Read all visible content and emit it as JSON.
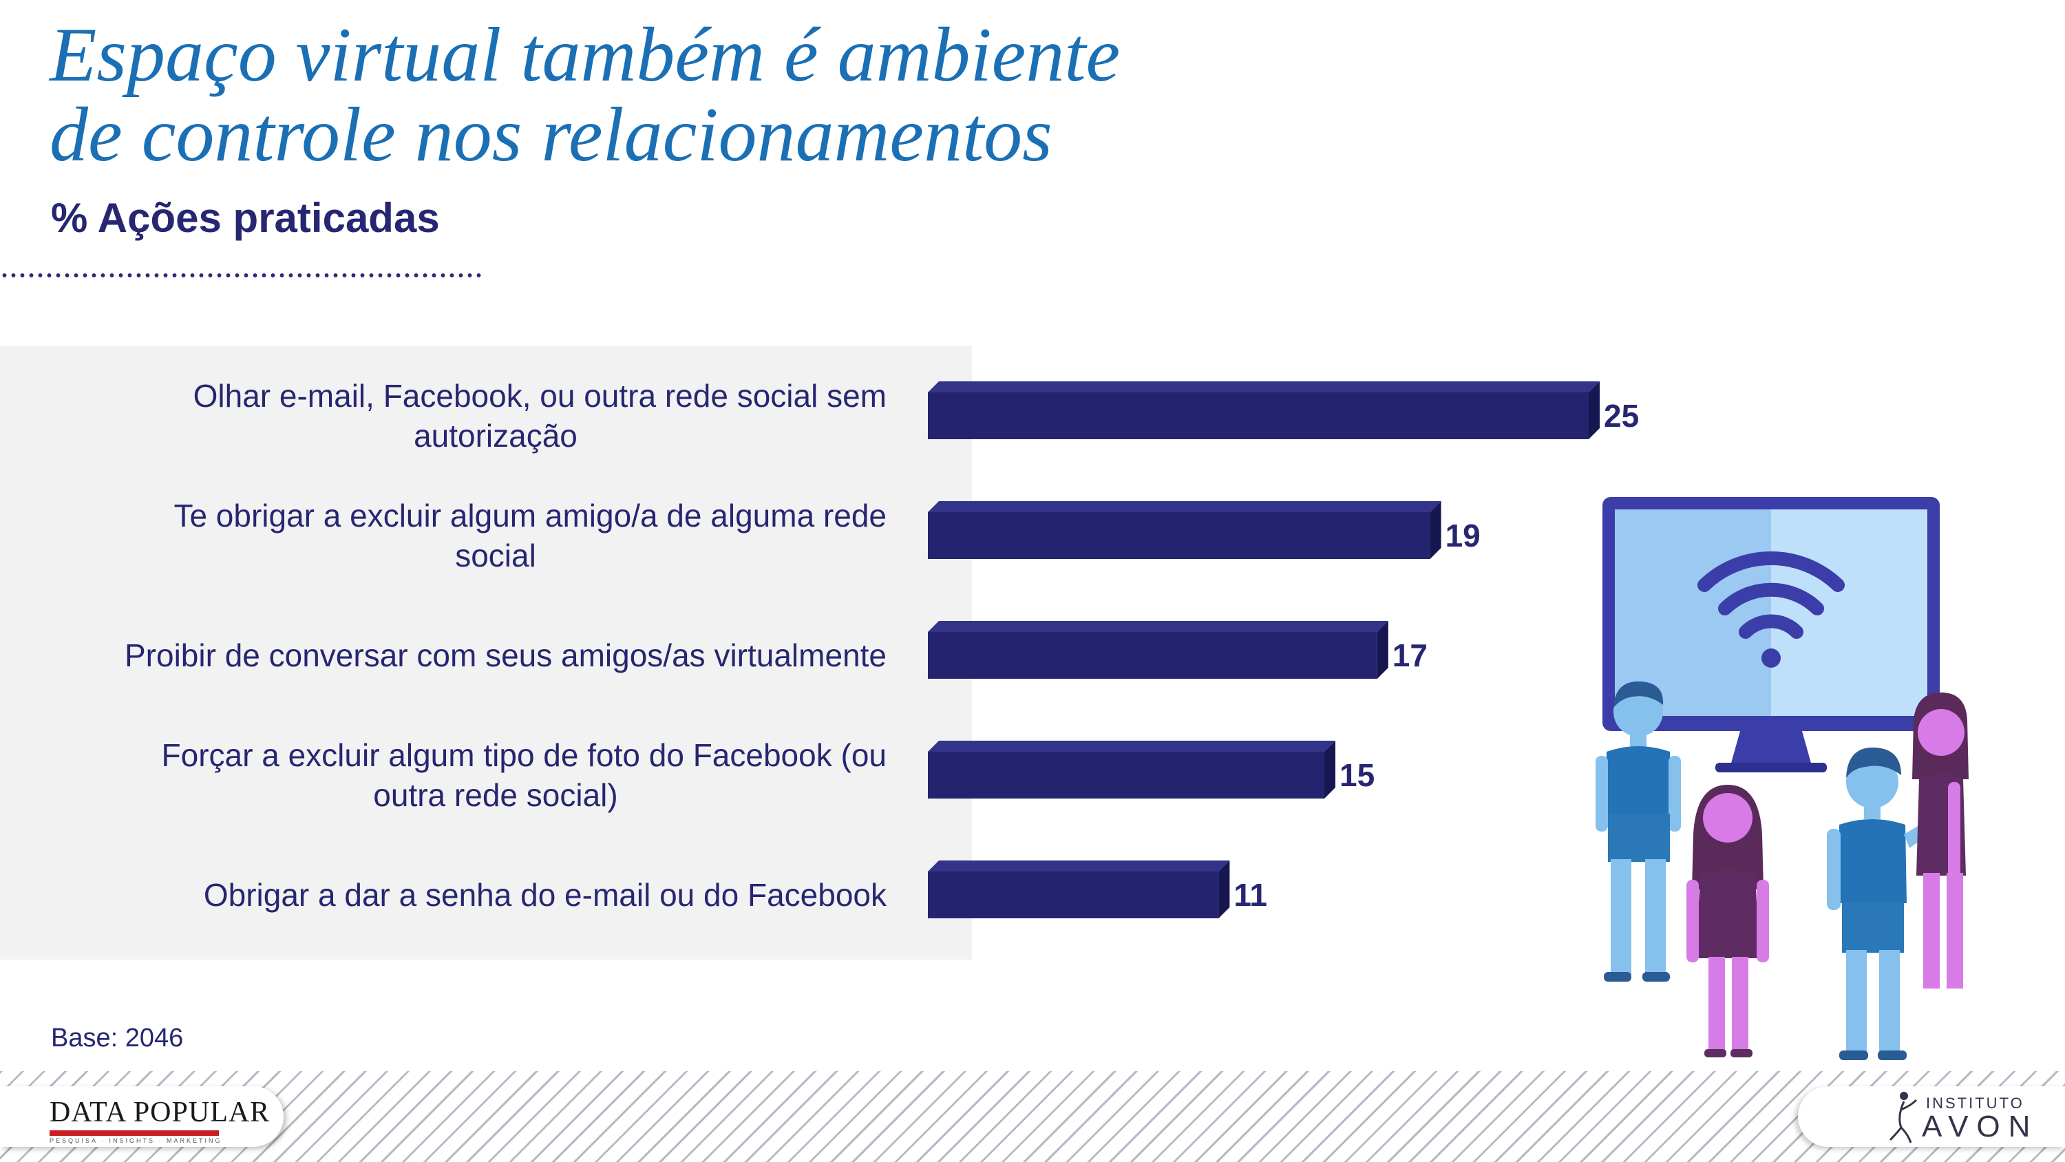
{
  "title": {
    "line1": "Espaço virtual também é ambiente",
    "line2": "de controle  nos relacionamentos"
  },
  "subtitle": "% Ações praticadas",
  "base_note": "Base: 2046",
  "footer": {
    "left_logo": "DATA POPULAR",
    "left_logo_tag": "PESQUISA · INSIGHTS · MARKETING",
    "right_logo_small": "INSTITUTO",
    "right_logo_big": "AVON"
  },
  "colors": {
    "bar_front": "#24246e",
    "bar_top": "#33338a",
    "bar_side": "#161650",
    "text": "#262672",
    "title": "#1a6fb5"
  },
  "chart_data": {
    "type": "bar",
    "orientation": "horizontal",
    "categories": [
      [
        "Olhar e-mail, Facebook, ou outra rede social sem",
        "autorização"
      ],
      [
        "Te obrigar a excluir algum amigo/a de alguma rede",
        "social"
      ],
      [
        "Proibir de conversar com seus amigos/as virtualmente"
      ],
      [
        "Forçar a excluir algum tipo de foto do Facebook (ou",
        "outra rede social)"
      ],
      [
        "Obrigar a dar a senha do e-mail ou do Facebook"
      ]
    ],
    "values": [
      25,
      19,
      17,
      15,
      11
    ],
    "value_labels": [
      "25",
      "19",
      "17",
      "15",
      "11"
    ],
    "xlim": [
      0,
      25
    ],
    "grid": false,
    "legend": "none"
  }
}
